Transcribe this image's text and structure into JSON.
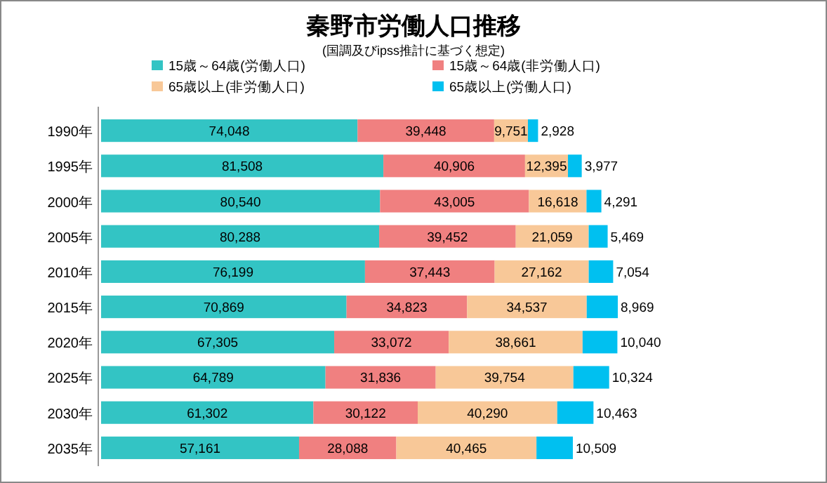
{
  "chart_data": {
    "type": "bar",
    "title": "秦野市労働人口推移",
    "subtitle": "(国調及びipss推計に基づく想定)",
    "orientation": "horizontal",
    "stacked": true,
    "legend": "top",
    "categories": [
      "1990年",
      "1995年",
      "2000年",
      "2005年",
      "2010年",
      "2015年",
      "2020年",
      "2025年",
      "2030年",
      "2035年"
    ],
    "series": [
      {
        "name": "15歳～64歳(労働人口)",
        "color": "#33c4c4",
        "values": [
          74048,
          81508,
          80540,
          80288,
          76199,
          70869,
          67305,
          64789,
          61302,
          57161
        ],
        "value_labels": [
          "74,048",
          "81,508",
          "80,540",
          "80,288",
          "76,199",
          "70,869",
          "67,305",
          "64,789",
          "61,302",
          "57,161"
        ]
      },
      {
        "name": "15歳～64歳(非労働人口)",
        "color": "#f08080",
        "values": [
          39448,
          40906,
          43005,
          39452,
          37443,
          34823,
          33072,
          31836,
          30122,
          28088
        ],
        "value_labels": [
          "39,448",
          "40,906",
          "43,005",
          "39,452",
          "37,443",
          "34,823",
          "33,072",
          "31,836",
          "30,122",
          "28,088"
        ]
      },
      {
        "name": "65歳以上(非労働人口)",
        "color": "#f8c898",
        "values": [
          9751,
          12395,
          16618,
          21059,
          27162,
          34537,
          38661,
          39754,
          40290,
          40465
        ],
        "value_labels": [
          "9,751",
          "12,395",
          "16,618",
          "21,059",
          "27,162",
          "34,537",
          "38,661",
          "39,754",
          "40,290",
          "40,465"
        ]
      },
      {
        "name": "65歳以上(労働人口)",
        "color": "#00c0f0",
        "values": [
          2928,
          3977,
          4291,
          5469,
          7054,
          8969,
          10040,
          10324,
          10463,
          10509
        ],
        "value_labels": [
          "2,928",
          "3,977",
          "4,291",
          "5,469",
          "7,054",
          "8,969",
          "10,040",
          "10,324",
          "10,463",
          "10,509"
        ]
      }
    ]
  }
}
